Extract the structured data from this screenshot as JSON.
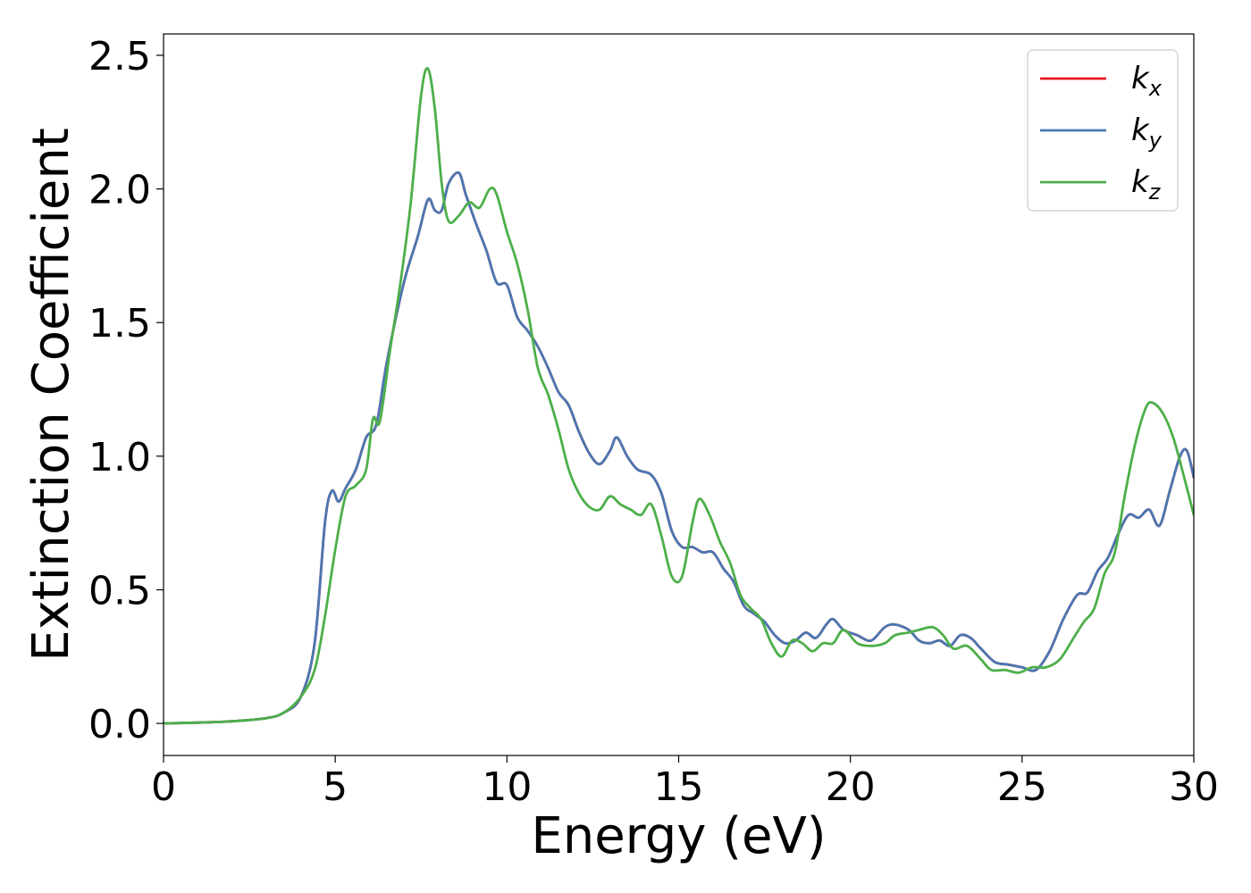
{
  "chart_data": {
    "type": "line",
    "title": "",
    "xlabel": "Energy (eV)",
    "ylabel": "Extinction Coefficient",
    "xlim": [
      0,
      30
    ],
    "ylim": [
      -0.12,
      2.58
    ],
    "xticks": [
      0,
      5,
      10,
      15,
      20,
      25,
      30
    ],
    "yticks": [
      0.0,
      0.5,
      1.0,
      1.5,
      2.0,
      2.5
    ],
    "xtick_labels": [
      "0",
      "5",
      "10",
      "15",
      "20",
      "25",
      "30"
    ],
    "ytick_labels": [
      "0.0",
      "0.5",
      "1.0",
      "1.5",
      "2.0",
      "2.5"
    ],
    "grid": false,
    "legend_position": "top-right",
    "series": [
      {
        "name": "kx",
        "legend_base": "k",
        "legend_sub": "x",
        "color": "#e41a1c",
        "points": [
          [
            0,
            0.0
          ],
          [
            1,
            0.003
          ],
          [
            2,
            0.008
          ],
          [
            3,
            0.02
          ],
          [
            3.5,
            0.04
          ],
          [
            4,
            0.1
          ],
          [
            4.4,
            0.3
          ],
          [
            4.7,
            0.75
          ],
          [
            4.9,
            0.87
          ],
          [
            5.1,
            0.83
          ],
          [
            5.3,
            0.88
          ],
          [
            5.6,
            0.95
          ],
          [
            5.9,
            1.07
          ],
          [
            6.2,
            1.12
          ],
          [
            6.5,
            1.35
          ],
          [
            7.0,
            1.65
          ],
          [
            7.4,
            1.82
          ],
          [
            7.7,
            1.96
          ],
          [
            7.9,
            1.92
          ],
          [
            8.1,
            1.92
          ],
          [
            8.3,
            2.02
          ],
          [
            8.6,
            2.06
          ],
          [
            8.8,
            1.98
          ],
          [
            9.1,
            1.87
          ],
          [
            9.4,
            1.77
          ],
          [
            9.7,
            1.65
          ],
          [
            10.0,
            1.64
          ],
          [
            10.3,
            1.52
          ],
          [
            10.6,
            1.47
          ],
          [
            10.9,
            1.41
          ],
          [
            11.2,
            1.33
          ],
          [
            11.5,
            1.24
          ],
          [
            11.8,
            1.19
          ],
          [
            12.1,
            1.09
          ],
          [
            12.4,
            1.01
          ],
          [
            12.7,
            0.97
          ],
          [
            13.0,
            1.02
          ],
          [
            13.2,
            1.07
          ],
          [
            13.5,
            1.0
          ],
          [
            13.8,
            0.95
          ],
          [
            14.2,
            0.93
          ],
          [
            14.5,
            0.86
          ],
          [
            14.8,
            0.72
          ],
          [
            15.1,
            0.66
          ],
          [
            15.4,
            0.66
          ],
          [
            15.7,
            0.64
          ],
          [
            16.0,
            0.64
          ],
          [
            16.3,
            0.58
          ],
          [
            16.6,
            0.53
          ],
          [
            16.9,
            0.44
          ],
          [
            17.2,
            0.41
          ],
          [
            17.5,
            0.38
          ],
          [
            17.8,
            0.33
          ],
          [
            18.1,
            0.3
          ],
          [
            18.4,
            0.31
          ],
          [
            18.7,
            0.34
          ],
          [
            19.0,
            0.32
          ],
          [
            19.3,
            0.37
          ],
          [
            19.5,
            0.39
          ],
          [
            19.8,
            0.35
          ],
          [
            20.2,
            0.33
          ],
          [
            20.6,
            0.31
          ],
          [
            21.0,
            0.36
          ],
          [
            21.3,
            0.37
          ],
          [
            21.7,
            0.35
          ],
          [
            22.0,
            0.31
          ],
          [
            22.3,
            0.3
          ],
          [
            22.6,
            0.31
          ],
          [
            22.9,
            0.29
          ],
          [
            23.2,
            0.33
          ],
          [
            23.5,
            0.32
          ],
          [
            23.8,
            0.28
          ],
          [
            24.2,
            0.23
          ],
          [
            24.6,
            0.22
          ],
          [
            25.0,
            0.21
          ],
          [
            25.4,
            0.2
          ],
          [
            25.8,
            0.27
          ],
          [
            26.2,
            0.39
          ],
          [
            26.6,
            0.48
          ],
          [
            26.9,
            0.49
          ],
          [
            27.2,
            0.57
          ],
          [
            27.5,
            0.62
          ],
          [
            27.8,
            0.71
          ],
          [
            28.1,
            0.78
          ],
          [
            28.4,
            0.77
          ],
          [
            28.7,
            0.8
          ],
          [
            29.0,
            0.74
          ],
          [
            29.3,
            0.87
          ],
          [
            29.6,
            1.0
          ],
          [
            29.8,
            1.02
          ],
          [
            30.0,
            0.92
          ]
        ]
      },
      {
        "name": "ky",
        "legend_base": "k",
        "legend_sub": "y",
        "color": "#4a77b1",
        "points": [
          [
            0,
            0.0
          ],
          [
            1,
            0.003
          ],
          [
            2,
            0.008
          ],
          [
            3,
            0.02
          ],
          [
            3.5,
            0.04
          ],
          [
            4,
            0.1
          ],
          [
            4.4,
            0.3
          ],
          [
            4.7,
            0.75
          ],
          [
            4.9,
            0.87
          ],
          [
            5.1,
            0.83
          ],
          [
            5.3,
            0.88
          ],
          [
            5.6,
            0.95
          ],
          [
            5.9,
            1.07
          ],
          [
            6.2,
            1.12
          ],
          [
            6.5,
            1.35
          ],
          [
            7.0,
            1.65
          ],
          [
            7.4,
            1.82
          ],
          [
            7.7,
            1.96
          ],
          [
            7.9,
            1.92
          ],
          [
            8.1,
            1.92
          ],
          [
            8.3,
            2.02
          ],
          [
            8.6,
            2.06
          ],
          [
            8.8,
            1.98
          ],
          [
            9.1,
            1.87
          ],
          [
            9.4,
            1.77
          ],
          [
            9.7,
            1.65
          ],
          [
            10.0,
            1.64
          ],
          [
            10.3,
            1.52
          ],
          [
            10.6,
            1.47
          ],
          [
            10.9,
            1.41
          ],
          [
            11.2,
            1.33
          ],
          [
            11.5,
            1.24
          ],
          [
            11.8,
            1.19
          ],
          [
            12.1,
            1.09
          ],
          [
            12.4,
            1.01
          ],
          [
            12.7,
            0.97
          ],
          [
            13.0,
            1.02
          ],
          [
            13.2,
            1.07
          ],
          [
            13.5,
            1.0
          ],
          [
            13.8,
            0.95
          ],
          [
            14.2,
            0.93
          ],
          [
            14.5,
            0.86
          ],
          [
            14.8,
            0.72
          ],
          [
            15.1,
            0.66
          ],
          [
            15.4,
            0.66
          ],
          [
            15.7,
            0.64
          ],
          [
            16.0,
            0.64
          ],
          [
            16.3,
            0.58
          ],
          [
            16.6,
            0.53
          ],
          [
            16.9,
            0.44
          ],
          [
            17.2,
            0.41
          ],
          [
            17.5,
            0.38
          ],
          [
            17.8,
            0.33
          ],
          [
            18.1,
            0.3
          ],
          [
            18.4,
            0.31
          ],
          [
            18.7,
            0.34
          ],
          [
            19.0,
            0.32
          ],
          [
            19.3,
            0.37
          ],
          [
            19.5,
            0.39
          ],
          [
            19.8,
            0.35
          ],
          [
            20.2,
            0.33
          ],
          [
            20.6,
            0.31
          ],
          [
            21.0,
            0.36
          ],
          [
            21.3,
            0.37
          ],
          [
            21.7,
            0.35
          ],
          [
            22.0,
            0.31
          ],
          [
            22.3,
            0.3
          ],
          [
            22.6,
            0.31
          ],
          [
            22.9,
            0.29
          ],
          [
            23.2,
            0.33
          ],
          [
            23.5,
            0.32
          ],
          [
            23.8,
            0.28
          ],
          [
            24.2,
            0.23
          ],
          [
            24.6,
            0.22
          ],
          [
            25.0,
            0.21
          ],
          [
            25.4,
            0.2
          ],
          [
            25.8,
            0.27
          ],
          [
            26.2,
            0.39
          ],
          [
            26.6,
            0.48
          ],
          [
            26.9,
            0.49
          ],
          [
            27.2,
            0.57
          ],
          [
            27.5,
            0.62
          ],
          [
            27.8,
            0.71
          ],
          [
            28.1,
            0.78
          ],
          [
            28.4,
            0.77
          ],
          [
            28.7,
            0.8
          ],
          [
            29.0,
            0.74
          ],
          [
            29.3,
            0.87
          ],
          [
            29.6,
            1.0
          ],
          [
            29.8,
            1.02
          ],
          [
            30.0,
            0.92
          ]
        ]
      },
      {
        "name": "kz",
        "legend_base": "k",
        "legend_sub": "z",
        "color": "#4daf4a",
        "points": [
          [
            0,
            0.0
          ],
          [
            1,
            0.003
          ],
          [
            2,
            0.008
          ],
          [
            3,
            0.02
          ],
          [
            3.5,
            0.04
          ],
          [
            4,
            0.1
          ],
          [
            4.4,
            0.2
          ],
          [
            4.7,
            0.4
          ],
          [
            5.0,
            0.65
          ],
          [
            5.3,
            0.85
          ],
          [
            5.6,
            0.89
          ],
          [
            5.9,
            0.95
          ],
          [
            6.1,
            1.14
          ],
          [
            6.3,
            1.13
          ],
          [
            6.6,
            1.4
          ],
          [
            6.9,
            1.65
          ],
          [
            7.2,
            1.95
          ],
          [
            7.5,
            2.35
          ],
          [
            7.7,
            2.45
          ],
          [
            7.9,
            2.3
          ],
          [
            8.1,
            2.02
          ],
          [
            8.3,
            1.88
          ],
          [
            8.6,
            1.9
          ],
          [
            8.9,
            1.95
          ],
          [
            9.2,
            1.93
          ],
          [
            9.5,
            2.0
          ],
          [
            9.7,
            1.98
          ],
          [
            10.0,
            1.84
          ],
          [
            10.3,
            1.72
          ],
          [
            10.6,
            1.55
          ],
          [
            10.9,
            1.33
          ],
          [
            11.2,
            1.23
          ],
          [
            11.5,
            1.1
          ],
          [
            11.8,
            0.95
          ],
          [
            12.1,
            0.86
          ],
          [
            12.4,
            0.81
          ],
          [
            12.7,
            0.8
          ],
          [
            13.0,
            0.85
          ],
          [
            13.3,
            0.82
          ],
          [
            13.6,
            0.8
          ],
          [
            13.9,
            0.78
          ],
          [
            14.2,
            0.82
          ],
          [
            14.5,
            0.7
          ],
          [
            14.8,
            0.55
          ],
          [
            15.1,
            0.55
          ],
          [
            15.4,
            0.75
          ],
          [
            15.6,
            0.84
          ],
          [
            15.9,
            0.78
          ],
          [
            16.2,
            0.68
          ],
          [
            16.5,
            0.6
          ],
          [
            16.8,
            0.48
          ],
          [
            17.1,
            0.43
          ],
          [
            17.4,
            0.39
          ],
          [
            17.7,
            0.3
          ],
          [
            18.0,
            0.25
          ],
          [
            18.3,
            0.31
          ],
          [
            18.6,
            0.3
          ],
          [
            18.9,
            0.27
          ],
          [
            19.2,
            0.3
          ],
          [
            19.5,
            0.3
          ],
          [
            19.8,
            0.35
          ],
          [
            20.2,
            0.3
          ],
          [
            20.6,
            0.29
          ],
          [
            21.0,
            0.3
          ],
          [
            21.3,
            0.33
          ],
          [
            21.7,
            0.34
          ],
          [
            22.0,
            0.35
          ],
          [
            22.4,
            0.36
          ],
          [
            22.7,
            0.33
          ],
          [
            23.0,
            0.28
          ],
          [
            23.4,
            0.29
          ],
          [
            23.8,
            0.24
          ],
          [
            24.1,
            0.2
          ],
          [
            24.5,
            0.2
          ],
          [
            24.9,
            0.19
          ],
          [
            25.3,
            0.21
          ],
          [
            25.7,
            0.21
          ],
          [
            26.1,
            0.24
          ],
          [
            26.5,
            0.32
          ],
          [
            26.8,
            0.38
          ],
          [
            27.1,
            0.43
          ],
          [
            27.4,
            0.56
          ],
          [
            27.7,
            0.64
          ],
          [
            28.0,
            0.86
          ],
          [
            28.3,
            1.05
          ],
          [
            28.6,
            1.18
          ],
          [
            28.8,
            1.2
          ],
          [
            29.1,
            1.16
          ],
          [
            29.4,
            1.07
          ],
          [
            29.7,
            0.93
          ],
          [
            30.0,
            0.78
          ]
        ]
      }
    ]
  }
}
